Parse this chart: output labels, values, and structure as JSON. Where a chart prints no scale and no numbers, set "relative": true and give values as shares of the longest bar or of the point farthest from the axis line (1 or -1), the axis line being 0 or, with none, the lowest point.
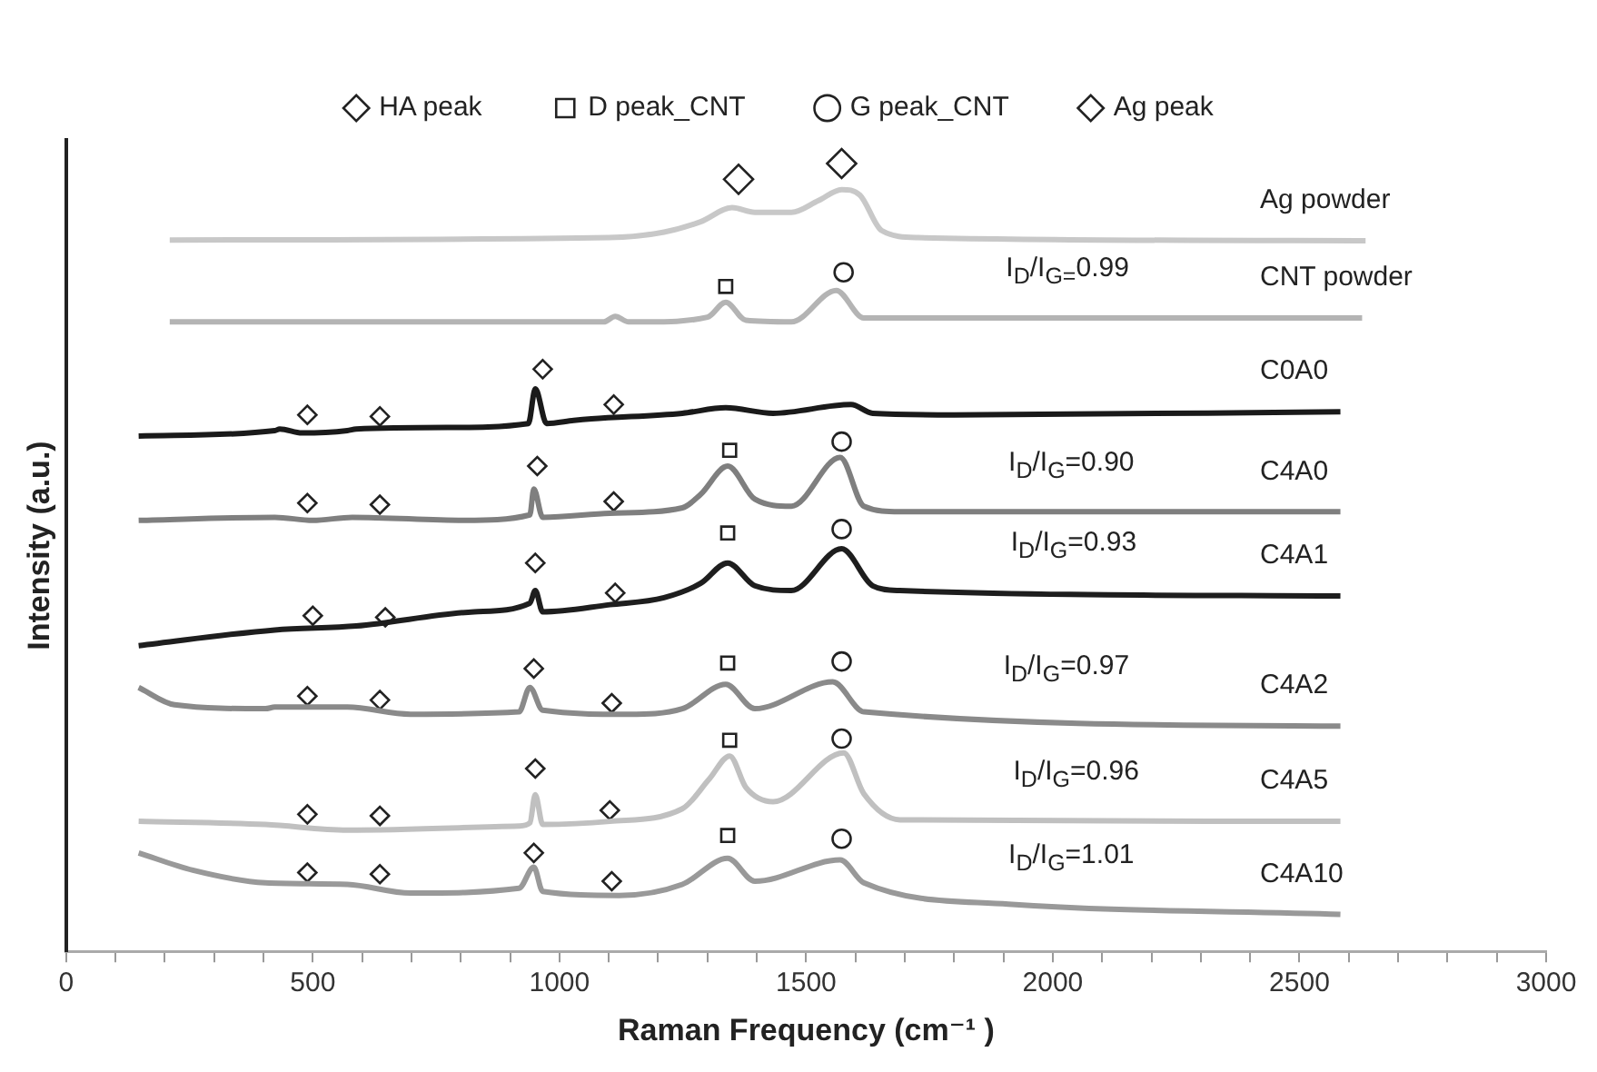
{
  "chart_data": {
    "type": "line",
    "xlabel": "Raman Frequency (cm⁻¹ )",
    "ylabel": "Intensity (a.u.)",
    "relative": true,
    "xlim": [
      0,
      3000
    ],
    "xticks": [
      0,
      {
        "value": 100,
        "label": null
      },
      {
        "value": 200,
        "label": null
      },
      {
        "value": 300,
        "label": null
      },
      {
        "value": 400,
        "label": null
      },
      500,
      {
        "value": 600,
        "label": null
      },
      {
        "value": 700,
        "label": null
      },
      {
        "value": 800,
        "label": null
      },
      {
        "value": 900,
        "label": null
      },
      1000,
      {
        "value": 1100,
        "label": null
      },
      {
        "value": 1200,
        "label": null
      },
      {
        "value": 1300,
        "label": null
      },
      {
        "value": 1400,
        "label": null
      },
      1500,
      {
        "value": 1600,
        "label": null
      },
      {
        "value": 1700,
        "label": null
      },
      {
        "value": 1800,
        "label": null
      },
      {
        "value": 1900,
        "label": null
      },
      2000,
      {
        "value": 2100,
        "label": null
      },
      {
        "value": 2200,
        "label": null
      },
      {
        "value": 2300,
        "label": null
      },
      {
        "value": 2400,
        "label": null
      },
      2500,
      {
        "value": 2600,
        "label": null
      },
      {
        "value": 2700,
        "label": null
      },
      {
        "value": 2800,
        "label": null
      },
      {
        "value": 2900,
        "label": null
      },
      3000
    ],
    "grid": false,
    "legend": "top",
    "line_style": "solid",
    "tick_labels": "x",
    "series": [
      {
        "name": "Ag powder",
        "type": "line",
        "marker": "none",
        "color": "#c8c8c8",
        "x": [
          210,
          1100,
          1212,
          1286,
          1350,
          1396,
          1470,
          1525,
          1572,
          1609,
          1653,
          1727,
          2634
        ],
        "values": [
          0.903,
          0.906,
          0.913,
          0.926,
          0.944,
          0.938,
          0.938,
          0.953,
          0.967,
          0.96,
          0.915,
          0.906,
          0.902
        ]
      },
      {
        "name": "CNT powder",
        "type": "line",
        "marker": "none",
        "color": "#b4b4b4",
        "x": [
          210,
          1090,
          1113,
          1140,
          1176,
          1300,
          1337,
          1378,
          1470,
          1561,
          1617,
          2627
        ],
        "values": [
          0.799,
          0.799,
          0.806,
          0.799,
          0.799,
          0.805,
          0.824,
          0.801,
          0.799,
          0.839,
          0.804,
          0.804
        ]
      },
      {
        "name": "C0A0",
        "type": "line",
        "marker": "none",
        "color": "#1a1a1a",
        "x": [
          147,
          423,
          433,
          478,
          570,
          588,
          772,
          937,
          951,
          974,
          1029,
          1065,
          1249,
          1337,
          1433,
          1591,
          1635,
          1800,
          2583
        ],
        "values": [
          0.654,
          0.661,
          0.663,
          0.658,
          0.661,
          0.663,
          0.665,
          0.67,
          0.714,
          0.67,
          0.674,
          0.676,
          0.683,
          0.69,
          0.683,
          0.694,
          0.683,
          0.681,
          0.685
        ]
      },
      {
        "name": "C4A0",
        "type": "line",
        "marker": "none",
        "color": "#7f7f7f",
        "x": [
          147,
          423,
          500,
          580,
          808,
          940,
          948,
          966,
          1102,
          1249,
          1286,
          1341,
          1396,
          1470,
          1569,
          1617,
          1690,
          2583
        ],
        "values": [
          0.547,
          0.551,
          0.547,
          0.551,
          0.547,
          0.554,
          0.587,
          0.551,
          0.556,
          0.563,
          0.58,
          0.616,
          0.574,
          0.565,
          0.627,
          0.565,
          0.558,
          0.558
        ]
      },
      {
        "name": "C4A1",
        "type": "line",
        "marker": "none",
        "color": "#1e1e1e",
        "x": [
          147,
          423,
          588,
          827,
          940,
          951,
          966,
          1102,
          1212,
          1286,
          1341,
          1396,
          1470,
          1572,
          1635,
          1690,
          2583
        ],
        "values": [
          0.388,
          0.408,
          0.413,
          0.431,
          0.442,
          0.458,
          0.431,
          0.44,
          0.449,
          0.467,
          0.493,
          0.464,
          0.458,
          0.511,
          0.464,
          0.458,
          0.451
        ]
      },
      {
        "name": "C4A2",
        "type": "line",
        "marker": "none",
        "color": "#8a8a8a",
        "x": [
          147,
          220,
          404,
          423,
          570,
          698,
          918,
          940,
          966,
          1139,
          1249,
          1337,
          1396,
          1554,
          1617,
          2583
        ],
        "values": [
          0.335,
          0.313,
          0.308,
          0.31,
          0.31,
          0.301,
          0.304,
          0.335,
          0.306,
          0.301,
          0.308,
          0.339,
          0.308,
          0.342,
          0.304,
          0.286
        ]
      },
      {
        "name": "C4A5",
        "type": "line",
        "marker": "none",
        "color": "#c0c0c0",
        "x": [
          147,
          404,
          570,
          918,
          940,
          951,
          966,
          1102,
          1249,
          1304,
          1345,
          1378,
          1433,
          1576,
          1617,
          1690,
          2583
        ],
        "values": [
          0.165,
          0.161,
          0.154,
          0.159,
          0.163,
          0.199,
          0.161,
          0.165,
          0.181,
          0.219,
          0.248,
          0.208,
          0.19,
          0.252,
          0.2,
          0.167,
          0.165
        ]
      },
      {
        "name": "C4A10",
        "type": "line",
        "marker": "none",
        "color": "#999999",
        "x": [
          147,
          257,
          404,
          570,
          698,
          918,
          948,
          966,
          1121,
          1249,
          1341,
          1396,
          1569,
          1617,
          1910,
          2583
        ],
        "values": [
          0.125,
          0.103,
          0.087,
          0.085,
          0.074,
          0.08,
          0.107,
          0.076,
          0.071,
          0.085,
          0.118,
          0.089,
          0.116,
          0.087,
          0.06,
          0.047
        ]
      },
      {
        "name": "HA peak",
        "type": "scatter",
        "marker": "diamond",
        "color": "#222222",
        "x": [
          489,
          636,
          966,
          1110,
          489,
          636,
          955,
          1110,
          500,
          647,
          951,
          1113,
          489,
          636,
          948,
          1106,
          489,
          636,
          951,
          1102,
          489,
          636,
          948,
          1106
        ],
        "values": [
          0.681,
          0.679,
          0.739,
          0.694,
          0.569,
          0.567,
          0.616,
          0.571,
          0.426,
          0.424,
          0.493,
          0.455,
          0.324,
          0.319,
          0.359,
          0.315,
          0.174,
          0.172,
          0.232,
          0.179,
          0.1,
          0.098,
          0.125,
          0.089
        ]
      },
      {
        "name": "D peak_CNT",
        "type": "scatter",
        "marker": "square",
        "color": "#222222",
        "x": [
          1337,
          1345,
          1341,
          1341,
          1345,
          1341
        ],
        "values": [
          0.844,
          0.636,
          0.531,
          0.366,
          0.268,
          0.147
        ]
      },
      {
        "name": "G peak_CNT",
        "type": "scatter",
        "marker": "circle",
        "color": "#222222",
        "x": [
          1576,
          1572,
          1572,
          1572,
          1572,
          1572
        ],
        "values": [
          0.862,
          0.647,
          0.536,
          0.368,
          0.27,
          0.143
        ]
      },
      {
        "name": "Ag peak",
        "type": "scatter",
        "marker": "diamond",
        "color": "#222222",
        "x": [
          1363,
          1572
        ],
        "values": [
          0.98,
          1
        ]
      }
    ],
    "annotations": [
      {
        "text": "I$_{D}$/I$_{G=}$0.99",
        "x": 1905,
        "y": 0.804
      },
      {
        "text": "I$_{D}$/I$_{G}$=0.90",
        "x": 1910,
        "y": 0.558
      },
      {
        "text": "I$_{D}$/I$_{G}$=0.93",
        "x": 1915,
        "y": 0.456
      },
      {
        "text": "I$_{D}$/I$_{G}$=0.97",
        "x": 1900,
        "y": 0.3
      },
      {
        "text": "I$_{D}$/I$_{G}$=0.96",
        "x": 1920,
        "y": 0.166
      },
      {
        "text": "I$_{D}$/I$_{G}$=1.01",
        "x": 1910,
        "y": 0.06
      }
    ]
  }
}
